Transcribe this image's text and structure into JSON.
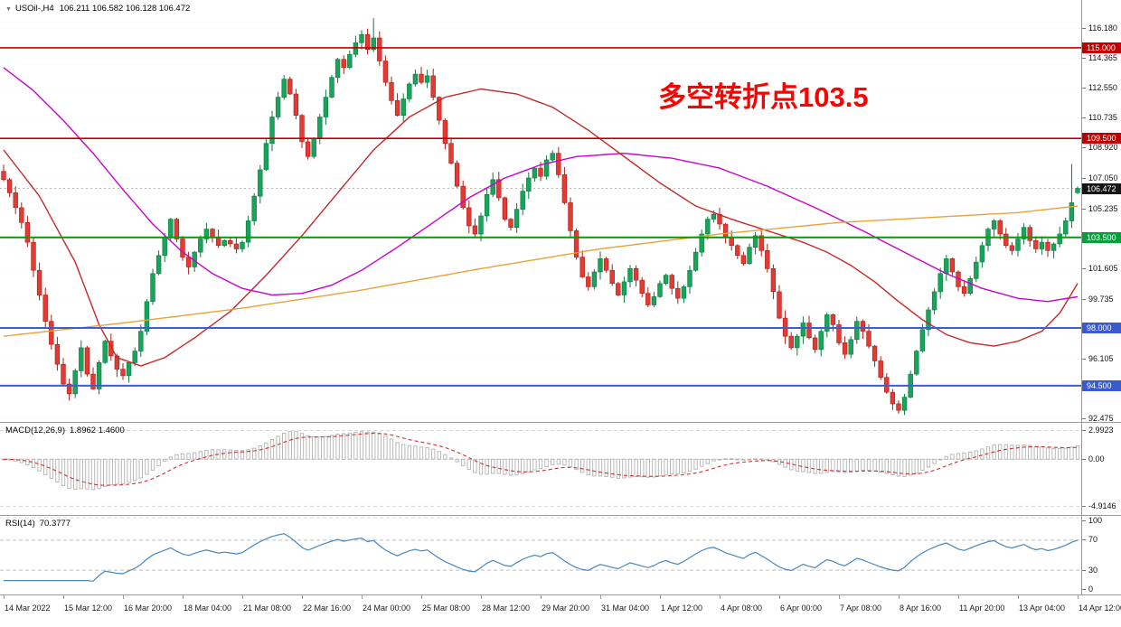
{
  "header": {
    "symbol_title": "USOil-,H4",
    "ohlc_text": "106.211 106.582 106.128 106.472",
    "collapse_icon": "▼"
  },
  "annotation": {
    "text": "多空转折点103.5",
    "color": "#ff0000"
  },
  "colors": {
    "background": "#ffffff",
    "bull": "#18a45a",
    "bull_border": "#0b7a3e",
    "bear": "#e33b33",
    "bear_border": "#a81e18",
    "ma_slow_magenta": "#cc00cc",
    "ma_mid_red": "#c62828",
    "ma_slowest_orange": "#e8a33d",
    "macd_histogram": "#b2b2b2",
    "macd_signal": "#cc3333",
    "rsi_line": "#4687c0",
    "level_red": "#c00000",
    "level_green": "#00a000",
    "level_blue": "#3a5fd0",
    "current_price_badge": "#151515"
  },
  "price_badges": [
    {
      "name": "resistance-115",
      "label": "115.000",
      "value": 115.0,
      "bg": "#c00000"
    },
    {
      "name": "resistance-109-5",
      "label": "109.500",
      "value": 109.5,
      "bg": "#c00000"
    },
    {
      "name": "current-price",
      "label": "106.472",
      "value": 106.472,
      "bg": "#151515"
    },
    {
      "name": "pivot-103-5",
      "label": "103.500",
      "value": 103.5,
      "bg": "#00a13a"
    },
    {
      "name": "support-98",
      "label": "98.000",
      "value": 98.0,
      "bg": "#3a5acd"
    },
    {
      "name": "support-94-5",
      "label": "94.500",
      "value": 94.5,
      "bg": "#3a5acd"
    }
  ],
  "chart_data": {
    "type": "candlestick",
    "symbol": "USOil-",
    "timeframe": "H4",
    "current_price": 106.472,
    "current_bar": {
      "open": 106.211,
      "high": 106.582,
      "low": 106.128,
      "close": 106.472
    },
    "ylim": [
      92.3,
      117.9
    ],
    "y_ticks": [
      116.18,
      114.365,
      112.55,
      110.735,
      108.92,
      107.05,
      105.235,
      101.605,
      99.735,
      96.105,
      92.475
    ],
    "x_labels": [
      "14 Mar 2022",
      "15 Mar 12:00",
      "16 Mar 20:00",
      "18 Mar 04:00",
      "21 Mar 08:00",
      "22 Mar 16:00",
      "24 Mar 00:00",
      "25 Mar 08:00",
      "28 Mar 12:00",
      "29 Mar 20:00",
      "31 Mar 04:00",
      "1 Apr 12:00",
      "4 Apr 08:00",
      "6 Apr 00:00",
      "7 Apr 08:00",
      "8 Apr 16:00",
      "11 Apr 20:00",
      "13 Apr 04:00",
      "14 Apr 12:00"
    ],
    "closes": [
      107.0,
      106.2,
      105.3,
      104.4,
      103.2,
      101.5,
      100.0,
      98.4,
      97.0,
      95.8,
      94.6,
      94.0,
      95.4,
      96.8,
      95.2,
      94.3,
      95.9,
      97.2,
      96.3,
      95.5,
      95.1,
      95.9,
      96.6,
      97.8,
      99.6,
      101.3,
      102.4,
      103.5,
      104.6,
      103.4,
      102.3,
      101.7,
      102.6,
      103.4,
      104.0,
      103.5,
      103.0,
      103.3,
      103.1,
      102.8,
      103.2,
      104.5,
      106.0,
      107.6,
      109.2,
      110.8,
      112.0,
      113.1,
      112.2,
      110.9,
      109.3,
      108.4,
      109.5,
      110.8,
      112.0,
      113.2,
      114.3,
      113.8,
      114.6,
      115.3,
      115.8,
      114.9,
      115.6,
      114.2,
      112.9,
      111.8,
      110.9,
      111.9,
      112.8,
      113.4,
      112.9,
      113.3,
      112.0,
      110.6,
      109.2,
      108.0,
      106.6,
      105.3,
      104.2,
      103.7,
      104.8,
      106.1,
      107.0,
      105.9,
      104.6,
      104.1,
      105.2,
      106.3,
      107.1,
      107.7,
      107.2,
      108.2,
      108.6,
      107.3,
      105.6,
      103.9,
      102.3,
      101.1,
      100.5,
      101.4,
      102.2,
      101.5,
      100.7,
      100.0,
      100.8,
      101.6,
      100.9,
      100.1,
      99.4,
      99.9,
      100.7,
      101.2,
      100.4,
      99.8,
      100.5,
      101.5,
      102.6,
      103.7,
      104.6,
      104.9,
      104.3,
      103.5,
      103.0,
      102.4,
      101.9,
      102.9,
      103.6,
      102.7,
      101.6,
      100.2,
      98.6,
      97.5,
      96.8,
      97.5,
      98.3,
      97.4,
      96.7,
      97.8,
      98.8,
      98.2,
      97.1,
      96.4,
      97.3,
      98.4,
      97.8,
      96.9,
      96.0,
      95.0,
      94.1,
      93.4,
      93.0,
      93.8,
      95.2,
      96.6,
      97.9,
      99.1,
      100.2,
      101.3,
      102.2,
      101.4,
      100.5,
      100.1,
      101.0,
      102.0,
      103.0,
      104.0,
      104.5,
      103.7,
      103.0,
      102.7,
      103.4,
      104.1,
      103.3,
      102.8,
      103.2,
      102.7,
      103.1,
      103.7,
      104.5,
      105.6,
      106.47
    ],
    "wick_overrides": {
      "11": {
        "low": 93.6
      },
      "62": {
        "high": 116.8
      },
      "150": {
        "low": 92.8
      },
      "179": {
        "high": 107.95
      },
      "180": {
        "open": 106.211,
        "high": 106.582,
        "low": 106.128,
        "close": 106.472
      }
    },
    "hlines": [
      {
        "name": "resistance-line-115",
        "value": 115.0,
        "color": "#c00000",
        "width": 1.6
      },
      {
        "name": "resistance-line-109-5",
        "value": 109.5,
        "color": "#c00000",
        "width": 1.6
      },
      {
        "name": "pivot-line-103-5",
        "value": 103.5,
        "color": "#00a000",
        "width": 2
      },
      {
        "name": "support-line-98",
        "value": 98.0,
        "color": "#3a5fd0",
        "width": 2
      },
      {
        "name": "support-line-94-5",
        "value": 94.5,
        "color": "#3a5fd0",
        "width": 2
      }
    ],
    "ma_lines": [
      {
        "name": "ma-slow-magenta-line",
        "color": "#cc00cc",
        "points": [
          [
            0,
            113.8
          ],
          [
            5,
            112.4
          ],
          [
            10,
            110.6
          ],
          [
            15,
            108.6
          ],
          [
            20,
            106.4
          ],
          [
            25,
            104.3
          ],
          [
            30,
            102.6
          ],
          [
            35,
            101.3
          ],
          [
            40,
            100.4
          ],
          [
            45,
            100.0
          ],
          [
            50,
            100.1
          ],
          [
            55,
            100.6
          ],
          [
            60,
            101.5
          ],
          [
            66,
            102.9
          ],
          [
            72,
            104.4
          ],
          [
            78,
            105.9
          ],
          [
            84,
            107.1
          ],
          [
            90,
            107.9
          ],
          [
            96,
            108.4
          ],
          [
            104,
            108.6
          ],
          [
            112,
            108.3
          ],
          [
            120,
            107.7
          ],
          [
            128,
            106.6
          ],
          [
            136,
            105.3
          ],
          [
            144,
            103.9
          ],
          [
            152,
            102.4
          ],
          [
            158,
            101.3
          ],
          [
            164,
            100.4
          ],
          [
            170,
            99.8
          ],
          [
            175,
            99.6
          ],
          [
            180,
            99.9
          ]
        ]
      },
      {
        "name": "ma-mid-red-line",
        "color": "#c62828",
        "points": [
          [
            0,
            108.8
          ],
          [
            6,
            106.0
          ],
          [
            12,
            102.0
          ],
          [
            16,
            98.2
          ],
          [
            19,
            96.2
          ],
          [
            23,
            95.7
          ],
          [
            27,
            96.2
          ],
          [
            32,
            97.4
          ],
          [
            38,
            99.0
          ],
          [
            44,
            101.2
          ],
          [
            50,
            103.6
          ],
          [
            56,
            106.2
          ],
          [
            62,
            108.8
          ],
          [
            68,
            110.8
          ],
          [
            74,
            112.0
          ],
          [
            80,
            112.5
          ],
          [
            86,
            112.2
          ],
          [
            92,
            111.4
          ],
          [
            98,
            110.0
          ],
          [
            104,
            108.4
          ],
          [
            110,
            106.8
          ],
          [
            116,
            105.4
          ],
          [
            122,
            104.6
          ],
          [
            128,
            103.9
          ],
          [
            134,
            103.2
          ],
          [
            138,
            102.6
          ],
          [
            142,
            101.8
          ],
          [
            146,
            100.8
          ],
          [
            150,
            99.6
          ],
          [
            154,
            98.5
          ],
          [
            158,
            97.6
          ],
          [
            162,
            97.1
          ],
          [
            166,
            96.9
          ],
          [
            170,
            97.2
          ],
          [
            174,
            97.8
          ],
          [
            177,
            98.9
          ],
          [
            180,
            100.7
          ]
        ]
      },
      {
        "name": "ma-slowest-orange-line",
        "color": "#e8a33d",
        "points": [
          [
            0,
            97.5
          ],
          [
            20,
            98.3
          ],
          [
            40,
            99.2
          ],
          [
            60,
            100.3
          ],
          [
            80,
            101.6
          ],
          [
            100,
            102.8
          ],
          [
            120,
            103.7
          ],
          [
            140,
            104.4
          ],
          [
            160,
            104.8
          ],
          [
            170,
            105.0
          ],
          [
            180,
            105.4
          ]
        ]
      }
    ],
    "indicators": {
      "macd": {
        "label": "MACD(12,26,9)",
        "values_text": "1.8962 1.4600",
        "params": [
          12,
          26,
          9
        ],
        "axis": [
          {
            "label": "2.9923",
            "value": 2.9923
          },
          {
            "label": "0.00",
            "value": 0
          },
          {
            "label": "-4.9146",
            "value": -4.9146
          }
        ]
      },
      "rsi": {
        "label": "RSI(14)",
        "value_text": "70.3777",
        "period": 14,
        "level_lines": [
          100,
          70,
          30
        ],
        "axis": [
          {
            "label": "100",
            "value": 100
          },
          {
            "label": "70",
            "value": 70
          },
          {
            "label": "30",
            "value": 30
          },
          {
            "label": "0",
            "value": 0
          }
        ]
      }
    }
  }
}
